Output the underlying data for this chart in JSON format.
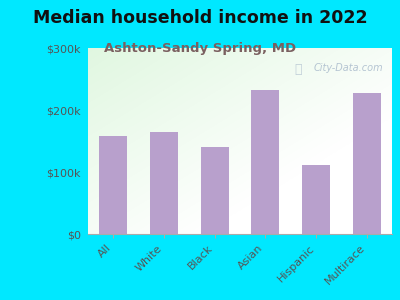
{
  "title": "Median household income in 2022",
  "subtitle": "Ashton-Sandy Spring, MD",
  "categories": [
    "All",
    "White",
    "Black",
    "Asian",
    "Hispanic",
    "Multirace"
  ],
  "values": [
    158000,
    165000,
    140000,
    232000,
    112000,
    228000
  ],
  "bar_color": "#b8a0cc",
  "background_outer": "#00e8ff",
  "title_fontsize": 12.5,
  "title_color": "#111111",
  "subtitle_fontsize": 9.5,
  "subtitle_color": "#7a6060",
  "ytick_labels": [
    "$0",
    "$100k",
    "$200k",
    "$300k"
  ],
  "ytick_values": [
    0,
    100000,
    200000,
    300000
  ],
  "ylim": [
    0,
    300000
  ],
  "watermark": "City-Data.com",
  "watermark_color": "#aabbcc",
  "axis_label_color": "#555555",
  "tick_label_fontsize": 8
}
